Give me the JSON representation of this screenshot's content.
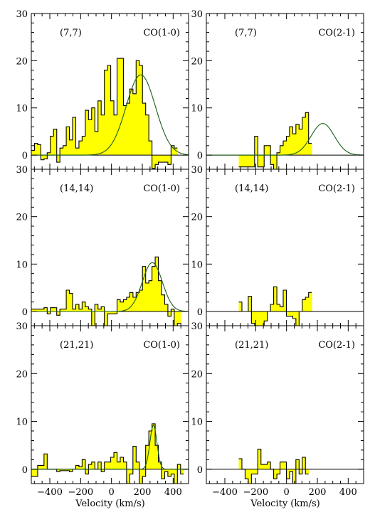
{
  "chart_data": {
    "type": "step",
    "xlabel": "Velocity (km/s)",
    "xlim": [
      -520,
      500
    ],
    "ylim": [
      -3,
      30
    ],
    "yticks": [
      0,
      10,
      20,
      30
    ],
    "xticks": [
      -400,
      -200,
      0,
      200,
      400
    ],
    "colors": {
      "fill": "#ffff00",
      "fit": "#1a5e1a",
      "line": "#000000"
    },
    "panels": [
      {
        "row": 0,
        "col": 0,
        "position": "(7,7)",
        "line": "CO(1-0)",
        "x_start": -520,
        "bin": 20.6,
        "values": [
          1,
          2.5,
          2.2,
          -1,
          -0.8,
          0.5,
          4,
          5.5,
          -1.5,
          1.5,
          2,
          6,
          3.2,
          8,
          1.5,
          3,
          4,
          9.5,
          7.5,
          10,
          5,
          11.5,
          8.5,
          18,
          19,
          11.5,
          8.5,
          20.5,
          20.5,
          10.5,
          11,
          14,
          13,
          20,
          19,
          11,
          8.5,
          3,
          -2.8,
          -2,
          -1.5,
          -1.5,
          -1.5,
          -2,
          2,
          1.5
        ],
        "fit": {
          "amp": 17,
          "center": 190,
          "sigma": 95
        }
      },
      {
        "row": 0,
        "col": 1,
        "position": "(7,7)",
        "line": "CO(2-1)",
        "x_start": -310,
        "bin": 20.6,
        "values": [
          -2.5,
          -2.5,
          -2.5,
          -2.5,
          -2.5,
          4,
          -2.5,
          -2.5,
          2,
          2,
          -2,
          -3,
          0.5,
          2,
          3,
          4,
          6,
          4.5,
          6.5,
          5.5,
          8,
          9,
          2.5
        ],
        "fit": {
          "amp": 6.7,
          "center": 235,
          "sigma": 75
        }
      },
      {
        "row": 1,
        "col": 0,
        "position": "(14,14)",
        "line": "CO(1-0)",
        "x_start": -520,
        "bin": 20.6,
        "values": [
          0.5,
          0.5,
          0.5,
          0.5,
          0.8,
          -0.5,
          0.8,
          0.8,
          -0.8,
          0.5,
          0.5,
          4.5,
          3.8,
          0.5,
          1.5,
          0.5,
          2,
          1,
          0.5,
          -3,
          1.5,
          0.5,
          1,
          -3,
          -0.5,
          -0.5,
          -0.5,
          2.5,
          2,
          2.5,
          3,
          4,
          3,
          4,
          4.5,
          9.5,
          6,
          6.5,
          9.5,
          11.5,
          6.5,
          3.5,
          1.5,
          -1,
          0.5,
          -3,
          -2.5
        ],
        "fit": {
          "amp": 10.3,
          "center": 265,
          "sigma": 65
        }
      },
      {
        "row": 1,
        "col": 1,
        "position": "(14,14)",
        "line": "CO(2-1)",
        "x_start": -310,
        "bin": 20.6,
        "values": [
          2,
          0,
          0,
          3.2,
          -2.5,
          -3,
          -3,
          -3,
          -2,
          0,
          1.5,
          5.2,
          1.5,
          1,
          4.5,
          -1,
          -1,
          -1.5,
          -3,
          0,
          2.5,
          3,
          4
        ],
        "fit": null
      },
      {
        "row": 2,
        "col": 0,
        "position": "(21,21)",
        "line": "CO(1-0)",
        "x_start": -520,
        "bin": 20.6,
        "values": [
          -1.5,
          -1.5,
          0.8,
          0.8,
          3.2,
          0,
          0,
          0,
          -0.5,
          -0.3,
          -0.3,
          -0.3,
          -0.5,
          0,
          0.8,
          0.5,
          2,
          -1,
          1,
          1.5,
          0,
          1.5,
          -0.5,
          1.5,
          1.5,
          2.5,
          3.5,
          1.5,
          2.5,
          1.5,
          -3,
          -1,
          4.8,
          1.5,
          -3,
          -1.5,
          5,
          8,
          9.5,
          5,
          1.5,
          -2,
          -0.5,
          -1.5,
          -1,
          -3,
          1,
          -1
        ],
        "fit": {
          "amp": 9.2,
          "center": 272,
          "sigma": 23
        }
      },
      {
        "row": 2,
        "col": 1,
        "position": "(21,21)",
        "line": "CO(2-1)",
        "x_start": -310,
        "bin": 20.6,
        "values": [
          2.2,
          0,
          -2,
          -3,
          -1,
          -1,
          4.2,
          1,
          1,
          1.5,
          0,
          -2,
          -1,
          1.5,
          1.5,
          -2,
          -0.5,
          -3,
          2,
          -1,
          2.5,
          -1
        ]
      }
    ]
  }
}
